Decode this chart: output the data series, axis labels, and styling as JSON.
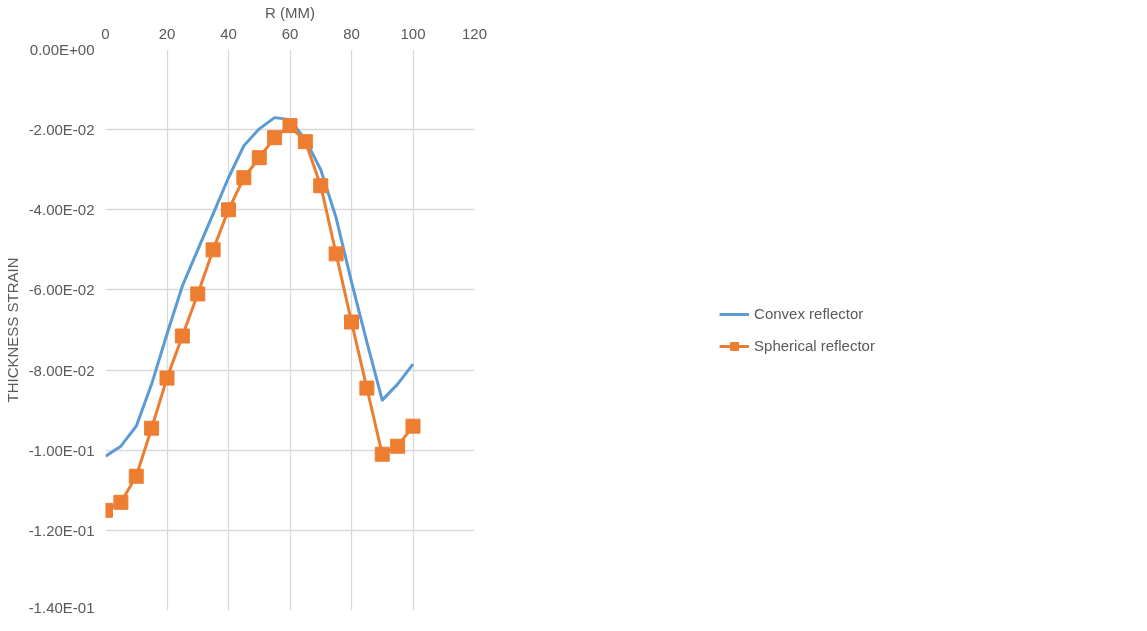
{
  "chart_data": {
    "type": "line",
    "xlabel": "R (MM)",
    "ylabel": "THICKNESS STRAIN",
    "x": [
      0,
      5,
      10,
      15,
      20,
      25,
      30,
      35,
      40,
      45,
      50,
      55,
      60,
      65,
      70,
      75,
      80,
      85,
      90,
      95,
      100
    ],
    "series": [
      {
        "name": "Convex reflector",
        "color": "#5b9bd5",
        "marker": "none",
        "values": [
          -0.1015,
          -0.099,
          -0.094,
          -0.0835,
          -0.071,
          -0.059,
          -0.05,
          -0.041,
          -0.032,
          -0.024,
          -0.0198,
          -0.017,
          -0.0175,
          -0.0225,
          -0.03,
          -0.042,
          -0.058,
          -0.073,
          -0.0875,
          -0.0835,
          -0.0785
        ]
      },
      {
        "name": "Spherical reflector",
        "color": "#ed7d31",
        "marker": "square",
        "values": [
          -0.115,
          -0.113,
          -0.1065,
          -0.0945,
          -0.082,
          -0.0715,
          -0.061,
          -0.05,
          -0.04,
          -0.032,
          -0.027,
          -0.022,
          -0.019,
          -0.023,
          -0.034,
          -0.051,
          -0.068,
          -0.0845,
          -0.101,
          -0.099,
          -0.094
        ]
      }
    ],
    "xlim": [
      0,
      120
    ],
    "xticks": [
      0,
      20,
      40,
      60,
      80,
      100,
      120
    ],
    "ylim": [
      -0.14,
      0
    ],
    "yticks": [
      {
        "value": 0,
        "label": "0.00E+00"
      },
      {
        "value": -0.02,
        "label": "-2.00E-02"
      },
      {
        "value": -0.04,
        "label": "-4.00E-02"
      },
      {
        "value": -0.06,
        "label": "-6.00E-02"
      },
      {
        "value": -0.08,
        "label": "-8.00E-02"
      },
      {
        "value": -0.1,
        "label": "-1.00E-01"
      },
      {
        "value": -0.12,
        "label": "-1.20E-01"
      },
      {
        "value": -0.14,
        "label": "-1.40E-01"
      }
    ],
    "grid": true,
    "legend": "right",
    "line_style": "solid"
  }
}
